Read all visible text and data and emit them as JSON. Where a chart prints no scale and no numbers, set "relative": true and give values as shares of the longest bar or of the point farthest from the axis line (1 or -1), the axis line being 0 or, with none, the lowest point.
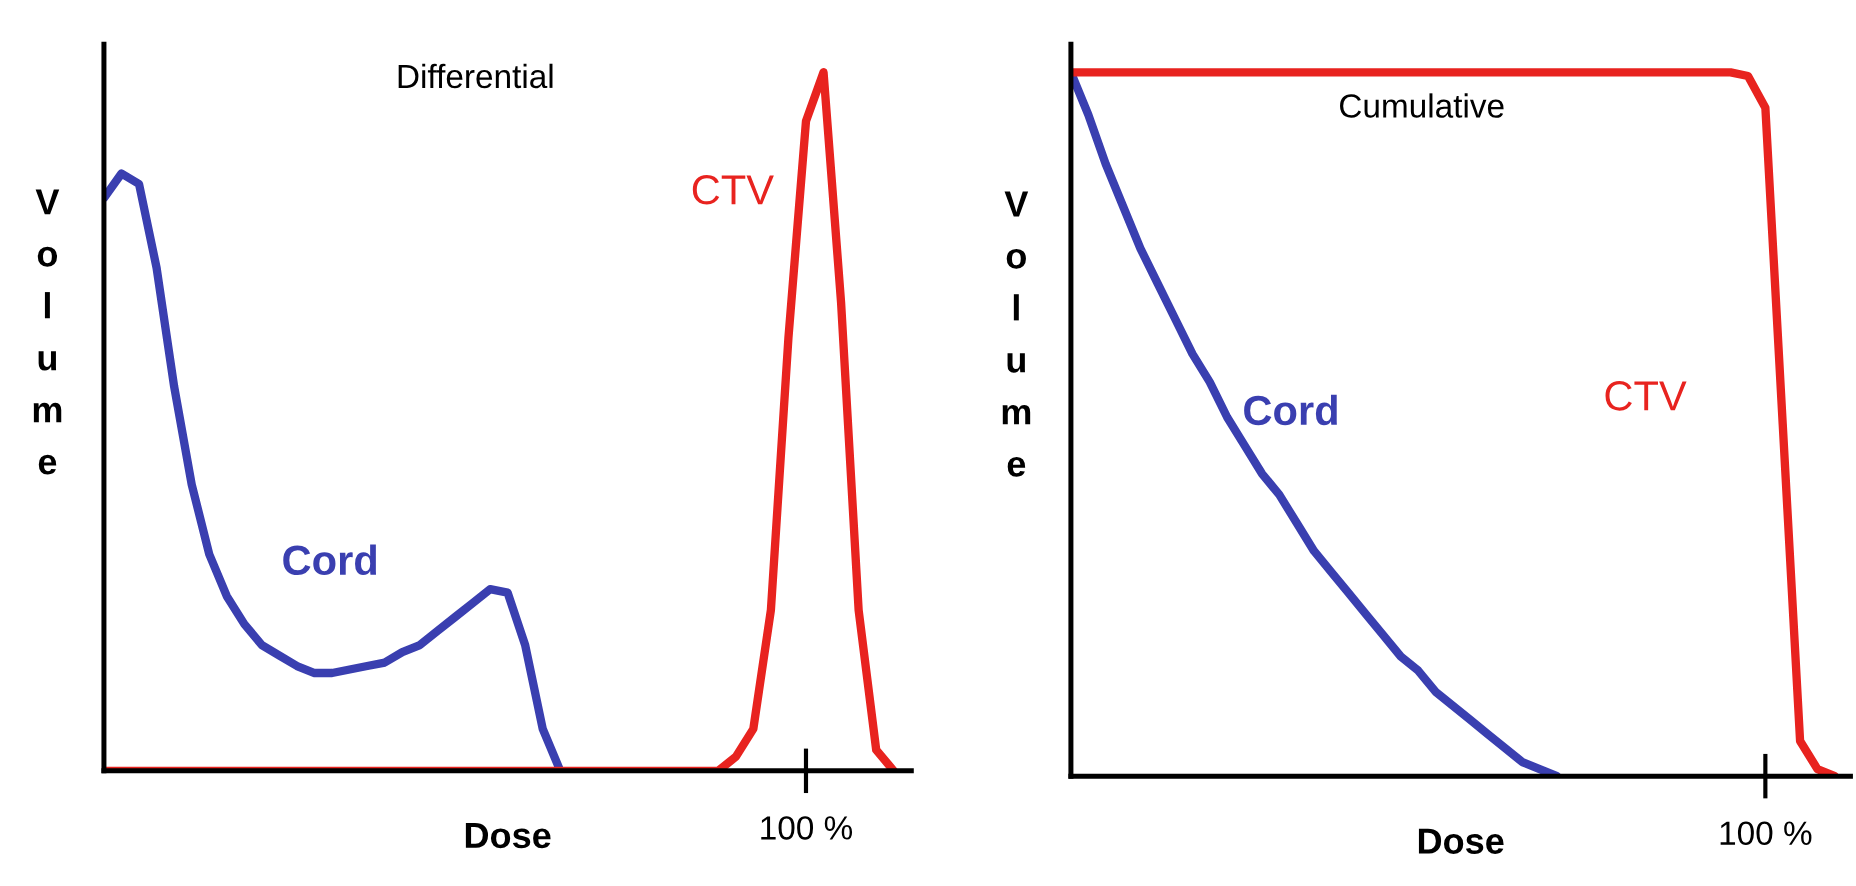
{
  "chart_data": [
    {
      "type": "line",
      "relative": true,
      "title": "Differential",
      "xlabel": "Dose",
      "ylabel": "Volume",
      "annotations": [
        "100 %"
      ],
      "grid": false,
      "legend": false,
      "marker": "none",
      "line_style": "solid",
      "categories": [
        null,
        null,
        null,
        null,
        null,
        null,
        null,
        null,
        null,
        null,
        null,
        null,
        null,
        null,
        null,
        null,
        null,
        null,
        null,
        null,
        null,
        null,
        null,
        null,
        null,
        null,
        null,
        null,
        null,
        null,
        null,
        null,
        null,
        null,
        null,
        null,
        null,
        null,
        null,
        null,
        null,
        null,
        null,
        null,
        null,
        null
      ],
      "series": [
        {
          "name": "Cord",
          "color": "#3a3fb0",
          "values": [
            0.82,
            0.855,
            0.84,
            0.72,
            0.55,
            0.41,
            0.31,
            0.25,
            0.21,
            0.18,
            0.165,
            0.15,
            0.14,
            0.14,
            0.145,
            0.15,
            0.155,
            0.17,
            0.18,
            0.2,
            0.22,
            0.24,
            0.26,
            0.255,
            0.18,
            0.06,
            0,
            null,
            null,
            null,
            null,
            null,
            null,
            null,
            null,
            null,
            null,
            null,
            null,
            null,
            null,
            null,
            null,
            null,
            null,
            null
          ]
        },
        {
          "name": "CTV",
          "color": "#e8231f",
          "values": [
            0,
            0,
            0,
            0,
            0,
            0,
            0,
            0,
            0,
            0,
            0,
            0,
            0,
            0,
            0,
            0,
            0,
            0,
            0,
            0,
            0,
            0,
            0,
            0,
            0,
            0,
            0,
            0,
            0,
            0,
            0,
            0,
            0,
            0,
            0,
            0,
            0.02,
            0.06,
            0.23,
            0.62,
            0.93,
            1,
            0.67,
            0.23,
            0.03,
            0
          ]
        }
      ]
    },
    {
      "type": "line",
      "relative": true,
      "title": "Cumulative",
      "xlabel": "Dose",
      "ylabel": "Volume",
      "annotations": [
        "100 %"
      ],
      "grid": false,
      "legend": false,
      "marker": "none",
      "line_style": "solid",
      "categories": [
        null,
        null,
        null,
        null,
        null,
        null,
        null,
        null,
        null,
        null,
        null,
        null,
        null,
        null,
        null,
        null,
        null,
        null,
        null,
        null,
        null,
        null,
        null,
        null,
        null,
        null,
        null,
        null,
        null,
        null,
        null,
        null,
        null,
        null,
        null,
        null,
        null,
        null,
        null,
        null,
        null,
        null,
        null,
        null,
        null
      ],
      "series": [
        {
          "name": "Cord",
          "color": "#3a3fb0",
          "values": [
            1,
            0.94,
            0.87,
            0.81,
            0.75,
            0.7,
            0.65,
            0.6,
            0.56,
            0.51,
            0.47,
            0.43,
            0.4,
            0.36,
            0.32,
            0.29,
            0.26,
            0.23,
            0.2,
            0.17,
            0.15,
            0.12,
            0.1,
            0.08,
            0.06,
            0.04,
            0.02,
            0.01,
            0,
            null,
            null,
            null,
            null,
            null,
            null,
            null,
            null,
            null,
            null,
            null,
            null,
            null,
            null,
            null,
            null
          ]
        },
        {
          "name": "CTV",
          "color": "#e8231f",
          "values": [
            1,
            1,
            1,
            1,
            1,
            1,
            1,
            1,
            1,
            1,
            1,
            1,
            1,
            1,
            1,
            1,
            1,
            1,
            1,
            1,
            1,
            1,
            1,
            1,
            1,
            1,
            1,
            1,
            1,
            1,
            1,
            1,
            1,
            1,
            1,
            1,
            1,
            1,
            1,
            0.995,
            0.95,
            0.5,
            0.05,
            0.01,
            0
          ]
        }
      ]
    }
  ]
}
